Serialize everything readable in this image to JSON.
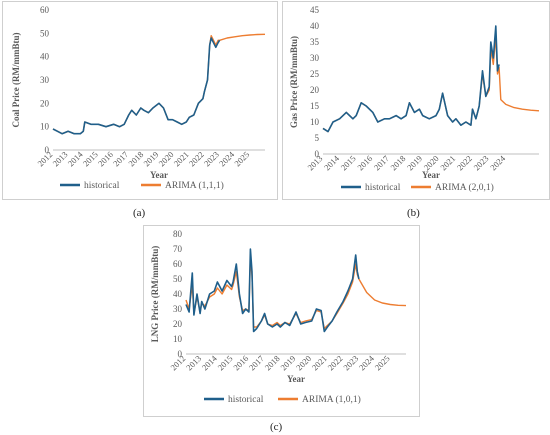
{
  "colors": {
    "historical": "#1f5f8b",
    "arima": "#ed7d31",
    "axis": "#bfbfbf",
    "text": "#595959"
  },
  "panel_labels": {
    "a": "(a)",
    "b": "(b)",
    "c": "(c)"
  },
  "chart_data": [
    {
      "type": "line",
      "xlabel": "Year",
      "ylabel": "Coal Price (RM/mmBtu)",
      "ylim": [
        0,
        60
      ],
      "yticks": [
        0,
        10,
        20,
        30,
        40,
        50,
        60
      ],
      "xlim": [
        2012,
        2026
      ],
      "xticks": [
        "2012",
        "2013",
        "2014",
        "2015",
        "2016",
        "2017",
        "2018",
        "2019",
        "2020",
        "2021",
        "2022",
        "2023",
        "2024",
        "2025"
      ],
      "legend": "bottom",
      "series": [
        {
          "name": "historical",
          "x": [
            2012.0,
            2012.3,
            2012.6,
            2013.0,
            2013.4,
            2013.8,
            2014.0,
            2014.1,
            2014.5,
            2015.0,
            2015.5,
            2016.0,
            2016.4,
            2016.7,
            2017.0,
            2017.2,
            2017.5,
            2017.8,
            2018.0,
            2018.3,
            2018.6,
            2019.0,
            2019.3,
            2019.6,
            2019.9,
            2020.2,
            2020.5,
            2020.8,
            2021.0,
            2021.3,
            2021.6,
            2021.9,
            2022.0,
            2022.2,
            2022.35,
            2022.45,
            2022.6,
            2022.75,
            2022.9,
            2023.0
          ],
          "y": [
            9,
            8,
            7,
            8,
            7,
            7,
            8,
            12,
            11,
            11,
            10,
            11,
            10,
            11,
            15,
            17,
            15,
            18,
            17,
            16,
            18,
            20,
            18,
            13,
            13,
            12,
            11,
            12,
            14,
            15,
            20,
            22,
            25,
            30,
            45,
            48,
            46,
            44,
            46,
            47
          ]
        },
        {
          "name": "ARIMA (1,1,1)",
          "x": [
            2012.0,
            2012.3,
            2012.6,
            2013.0,
            2013.4,
            2013.8,
            2014.0,
            2014.1,
            2014.5,
            2015.0,
            2015.5,
            2016.0,
            2016.4,
            2016.7,
            2017.0,
            2017.2,
            2017.5,
            2017.8,
            2018.0,
            2018.3,
            2018.6,
            2019.0,
            2019.3,
            2019.6,
            2019.9,
            2020.2,
            2020.5,
            2020.8,
            2021.0,
            2021.3,
            2021.6,
            2021.9,
            2022.0,
            2022.2,
            2022.35,
            2022.45,
            2022.6,
            2022.75,
            2022.9,
            2023.0,
            2023.5,
            2024.0,
            2024.5,
            2025.0,
            2025.5,
            2026.0
          ],
          "y": [
            9,
            8,
            7,
            8,
            7,
            7,
            8,
            12,
            11,
            11,
            10,
            11,
            10,
            11,
            15,
            17,
            15,
            18,
            17,
            16,
            18,
            20,
            18,
            13,
            13,
            12,
            11,
            12,
            14,
            15,
            20,
            22,
            25,
            30,
            45,
            49,
            47,
            45,
            47,
            47,
            48,
            48.5,
            49,
            49.3,
            49.5,
            49.6
          ]
        }
      ]
    },
    {
      "type": "line",
      "xlabel": "Year",
      "ylabel": "Gas Price (RM/mmBtu)",
      "ylim": [
        0,
        45
      ],
      "yticks": [
        0,
        5,
        10,
        15,
        20,
        25,
        30,
        35,
        40,
        45
      ],
      "xlim": [
        2013,
        2026
      ],
      "xticks": [
        "2013",
        "2014",
        "2015",
        "2016",
        "2017",
        "2018",
        "2019",
        "2020",
        "2021",
        "2022",
        "2023",
        "2024"
      ],
      "legend": "bottom",
      "series": [
        {
          "name": "historical",
          "x": [
            2013.0,
            2013.3,
            2013.6,
            2014.0,
            2014.4,
            2014.8,
            2015.0,
            2015.3,
            2015.6,
            2016.0,
            2016.3,
            2016.7,
            2017.0,
            2017.4,
            2017.7,
            2018.0,
            2018.2,
            2018.5,
            2018.8,
            2019.0,
            2019.4,
            2019.8,
            2020.0,
            2020.2,
            2020.5,
            2020.8,
            2021.0,
            2021.3,
            2021.6,
            2021.9,
            2022.0,
            2022.2,
            2022.4,
            2022.6,
            2022.8,
            2023.0,
            2023.1,
            2023.25,
            2023.4,
            2023.5,
            2023.6
          ],
          "y": [
            8,
            7,
            10,
            11,
            13,
            11,
            12,
            16,
            15,
            13,
            10,
            11,
            11,
            12,
            11,
            12,
            16,
            13,
            14,
            12,
            11,
            12,
            14,
            19,
            12,
            10,
            11,
            9,
            10,
            9,
            14,
            11,
            15,
            26,
            18,
            21,
            35,
            30,
            40,
            26,
            28
          ]
        },
        {
          "name": "ARIMA (2,0,1)",
          "x": [
            2013.0,
            2013.3,
            2013.6,
            2014.0,
            2014.4,
            2014.8,
            2015.0,
            2015.3,
            2015.6,
            2016.0,
            2016.3,
            2016.7,
            2017.0,
            2017.4,
            2017.7,
            2018.0,
            2018.2,
            2018.5,
            2018.8,
            2019.0,
            2019.4,
            2019.8,
            2020.0,
            2020.2,
            2020.5,
            2020.8,
            2021.0,
            2021.3,
            2021.6,
            2021.9,
            2022.0,
            2022.2,
            2022.4,
            2022.6,
            2022.8,
            2023.0,
            2023.1,
            2023.25,
            2023.4,
            2023.5,
            2023.6,
            2023.7,
            2024.0,
            2024.5,
            2025.0,
            2025.5,
            2026.0
          ],
          "y": [
            8,
            7,
            10,
            11,
            13,
            11,
            12,
            16,
            15,
            13,
            10,
            11,
            11,
            12,
            11,
            12,
            16,
            13,
            14,
            12,
            11,
            12,
            14,
            19,
            12,
            10,
            11,
            9,
            10,
            9,
            14,
            11,
            15,
            25,
            18,
            20,
            33,
            28,
            37,
            25,
            27,
            17,
            15.5,
            14.5,
            14,
            13.7,
            13.5
          ]
        }
      ]
    },
    {
      "type": "line",
      "xlabel": "Year",
      "ylabel": "LNG Price (RM/mmBtu)",
      "ylim": [
        0,
        80
      ],
      "yticks": [
        0,
        10,
        20,
        30,
        40,
        50,
        60,
        70,
        80
      ],
      "xlim": [
        2012,
        2026
      ],
      "xticks": [
        "2012",
        "2013",
        "2014",
        "2015",
        "2016",
        "2017",
        "2018",
        "2019",
        "2020",
        "2021",
        "2022",
        "2023",
        "2024",
        "2025"
      ],
      "legend": "bottom",
      "series": [
        {
          "name": "historical",
          "x": [
            2012.0,
            2012.2,
            2012.4,
            2012.5,
            2012.7,
            2012.9,
            2013.0,
            2013.2,
            2013.5,
            2013.8,
            2014.0,
            2014.3,
            2014.6,
            2014.9,
            2015.0,
            2015.2,
            2015.4,
            2015.6,
            2015.8,
            2016.0,
            2016.1,
            2016.2,
            2016.3,
            2016.5,
            2016.8,
            2017.0,
            2017.2,
            2017.5,
            2017.8,
            2018.0,
            2018.3,
            2018.6,
            2019.0,
            2019.3,
            2019.6,
            2020.0,
            2020.3,
            2020.6,
            2020.8,
            2021.0,
            2021.3,
            2021.6,
            2022.0,
            2022.3,
            2022.6,
            2022.8,
            2022.9,
            2023.0
          ],
          "y": [
            33,
            28,
            54,
            26,
            40,
            27,
            35,
            30,
            40,
            42,
            48,
            42,
            49,
            45,
            48,
            60,
            40,
            27,
            30,
            28,
            70,
            55,
            15,
            17,
            22,
            27,
            20,
            18,
            20,
            18,
            21,
            19,
            28,
            20,
            21,
            22,
            30,
            29,
            15,
            18,
            22,
            28,
            35,
            42,
            50,
            66,
            55,
            50
          ]
        },
        {
          "name": "ARIMA (1,0,1)",
          "x": [
            2012.0,
            2012.2,
            2012.4,
            2012.5,
            2012.7,
            2012.9,
            2013.0,
            2013.2,
            2013.5,
            2013.8,
            2014.0,
            2014.3,
            2014.6,
            2014.9,
            2015.0,
            2015.2,
            2015.4,
            2015.6,
            2015.8,
            2016.0,
            2016.1,
            2016.2,
            2016.3,
            2016.5,
            2016.8,
            2017.0,
            2017.2,
            2017.5,
            2017.8,
            2018.0,
            2018.3,
            2018.6,
            2019.0,
            2019.3,
            2019.6,
            2020.0,
            2020.3,
            2020.6,
            2020.8,
            2021.0,
            2021.3,
            2021.6,
            2022.0,
            2022.3,
            2022.6,
            2022.8,
            2022.9,
            2023.0,
            2023.5,
            2024.0,
            2024.5,
            2025.0,
            2025.5,
            2026.0
          ],
          "y": [
            36,
            30,
            46,
            27,
            38,
            28,
            34,
            32,
            38,
            40,
            44,
            40,
            46,
            43,
            46,
            55,
            38,
            29,
            30,
            29,
            64,
            52,
            18,
            18,
            22,
            26,
            20,
            19,
            21,
            19,
            21,
            20,
            27,
            21,
            22,
            23,
            29,
            28,
            17,
            19,
            22,
            27,
            34,
            40,
            48,
            60,
            53,
            50,
            41,
            36,
            34,
            33,
            32.5,
            32.3
          ]
        }
      ]
    }
  ]
}
